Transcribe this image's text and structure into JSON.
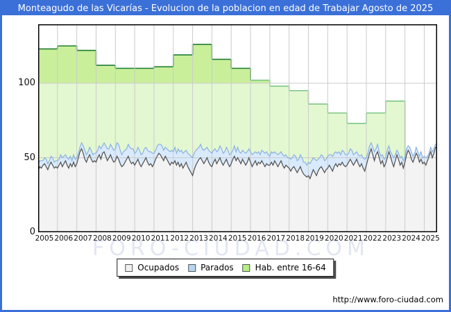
{
  "title": "Monteagudo de las Vicarías - Evolucion de la poblacion en edad de Trabajar Agosto de 2025",
  "watermark": "FORO-CIUDAD.COM",
  "footer": {
    "url": "http://www.foro-ciudad.com"
  },
  "colors": {
    "frame_blue": "#3b70d8",
    "title_text": "#ffffff",
    "hab_fill_below_100": "#e3f8d1",
    "hab_fill_above_100": "#c9ef9b",
    "hab_line_dark": "#1e7c30",
    "hab_line_light": "#7cc685",
    "parados_fill": "#d9eafc",
    "parados_line": "#8ab1e0",
    "ocupados_fill": "#f3f3f3",
    "ocupados_line": "#4d4d4d",
    "grid": "#cbcbcb",
    "plot_border": "#000000",
    "watermark_color": "#e2e6f2"
  },
  "legend": {
    "items": [
      {
        "label": "Ocupados",
        "swatch": "#f0f0f0"
      },
      {
        "label": "Parados",
        "swatch": "#b8d4f0"
      },
      {
        "label": "Hab. entre 16-64",
        "swatch": "#b6ee86"
      }
    ]
  },
  "y_axis": {
    "ticks": [
      {
        "label": "0",
        "value": 0
      },
      {
        "label": "50",
        "value": 50
      },
      {
        "label": "100",
        "value": 100
      }
    ]
  },
  "x_axis": {
    "ticks": [
      {
        "label": "2005",
        "year": 2005
      },
      {
        "label": "2006",
        "year": 2006
      },
      {
        "label": "2007",
        "year": 2007
      },
      {
        "label": "2008",
        "year": 2008
      },
      {
        "label": "2009",
        "year": 2009
      },
      {
        "label": "2010",
        "year": 2010
      },
      {
        "label": "2011",
        "year": 2011
      },
      {
        "label": "2012",
        "year": 2012
      },
      {
        "label": "2013",
        "year": 2013
      },
      {
        "label": "2014",
        "year": 2014
      },
      {
        "label": "2015",
        "year": 2015
      },
      {
        "label": "2016",
        "year": 2016
      },
      {
        "label": "2017",
        "year": 2017
      },
      {
        "label": "2018",
        "year": 2018
      },
      {
        "label": "2019",
        "year": 2019
      },
      {
        "label": "2020",
        "year": 2020
      },
      {
        "label": "2021",
        "year": 2021
      },
      {
        "label": "2022",
        "year": 2022
      },
      {
        "label": "2023",
        "year": 2023
      },
      {
        "label": "2024",
        "year": 2024
      },
      {
        "label": "2025",
        "year": 2025
      }
    ]
  },
  "chart_data": {
    "type": "area",
    "title": "Evolucion de la poblacion en edad de Trabajar - Agosto de 2025",
    "xlabel": "",
    "ylabel": "",
    "x_start": 2005,
    "x_end_fraction": 2025.6667,
    "ylim": [
      0,
      139.5
    ],
    "grid": true,
    "legend_position": "bottom",
    "series": [
      {
        "name": "Hab. entre 16-64",
        "type": "yearly-step",
        "start_year": 2005,
        "note": "padron yearly values 2005-2023, area ends at 2024.0",
        "values": [
          123,
          125,
          122,
          112,
          110,
          110,
          111,
          119,
          126,
          116,
          110,
          102,
          98,
          95,
          86,
          80,
          73,
          80,
          88
        ]
      },
      {
        "name": "Ocupados",
        "type": "monthly",
        "start": "2005-01",
        "end": "2025-08",
        "values": [
          41,
          44,
          43,
          45,
          46,
          44,
          42,
          45,
          47,
          45,
          43,
          44,
          43,
          45,
          47,
          44,
          46,
          48,
          45,
          43,
          46,
          44,
          47,
          44,
          46,
          50,
          54,
          56,
          53,
          49,
          47,
          50,
          52,
          49,
          47,
          48,
          47,
          50,
          52,
          49,
          53,
          54,
          51,
          48,
          50,
          52,
          49,
          47,
          48,
          51,
          49,
          46,
          44,
          45,
          47,
          49,
          51,
          48,
          46,
          47,
          45,
          47,
          49,
          46,
          44,
          46,
          48,
          50,
          47,
          45,
          46,
          44,
          46,
          49,
          51,
          53,
          52,
          50,
          48,
          51,
          49,
          47,
          45,
          47,
          46,
          48,
          45,
          47,
          44,
          46,
          43,
          45,
          47,
          44,
          42,
          40,
          38,
          42,
          45,
          47,
          49,
          50,
          48,
          46,
          48,
          50,
          47,
          45,
          44,
          47,
          49,
          46,
          48,
          50,
          47,
          45,
          47,
          49,
          46,
          44,
          46,
          49,
          51,
          48,
          50,
          48,
          46,
          49,
          47,
          45,
          47,
          50,
          47,
          44,
          46,
          48,
          45,
          47,
          46,
          48,
          46,
          44,
          46,
          45,
          45,
          47,
          45,
          48,
          46,
          44,
          46,
          48,
          45,
          43,
          45,
          44,
          43,
          41,
          43,
          44,
          42,
          40,
          42,
          44,
          41,
          39,
          38,
          37,
          38,
          36,
          39,
          42,
          40,
          38,
          41,
          43,
          44,
          42,
          40,
          42,
          43,
          45,
          43,
          41,
          44,
          46,
          44,
          46,
          45,
          47,
          45,
          44,
          45,
          47,
          49,
          47,
          45,
          47,
          49,
          46,
          44,
          46,
          43,
          41,
          45,
          49,
          53,
          56,
          52,
          48,
          52,
          54,
          50,
          46,
          48,
          44,
          46,
          50,
          54,
          51,
          47,
          44,
          48,
          52,
          49,
          45,
          47,
          43,
          47,
          52,
          55,
          53,
          49,
          47,
          50,
          53,
          51,
          47,
          49,
          46,
          47,
          45,
          48,
          51,
          54,
          50,
          53,
          57
        ]
      },
      {
        "name": "Parados",
        "type": "monthly-stacked-on-ocupados",
        "start": "2005-01",
        "end": "2025-08",
        "values": [
          4,
          4,
          5,
          3,
          4,
          5,
          4,
          3,
          4,
          5,
          4,
          4,
          5,
          4,
          5,
          6,
          5,
          4,
          5,
          6,
          5,
          4,
          5,
          5,
          4,
          3,
          3,
          4,
          5,
          6,
          5,
          4,
          5,
          6,
          5,
          5,
          6,
          5,
          6,
          7,
          5,
          6,
          7,
          8,
          6,
          7,
          8,
          8,
          8,
          9,
          10,
          9,
          8,
          9,
          8,
          7,
          8,
          9,
          10,
          9,
          8,
          7,
          8,
          9,
          8,
          7,
          8,
          7,
          8,
          9,
          8,
          9,
          7,
          6,
          7,
          6,
          7,
          8,
          7,
          6,
          7,
          8,
          9,
          8,
          8,
          9,
          8,
          9,
          10,
          9,
          10,
          9,
          8,
          9,
          10,
          11,
          12,
          11,
          10,
          9,
          8,
          9,
          8,
          9,
          8,
          7,
          8,
          9,
          9,
          8,
          7,
          8,
          7,
          8,
          9,
          8,
          7,
          8,
          9,
          8,
          7,
          6,
          7,
          6,
          7,
          6,
          7,
          6,
          7,
          8,
          7,
          6,
          7,
          8,
          7,
          6,
          8,
          7,
          6,
          7,
          8,
          9,
          8,
          7,
          6,
          7,
          8,
          6,
          7,
          8,
          7,
          6,
          7,
          8,
          7,
          6,
          7,
          8,
          7,
          8,
          9,
          8,
          7,
          8,
          9,
          8,
          9,
          8,
          9,
          10,
          9,
          8,
          9,
          10,
          8,
          7,
          8,
          9,
          8,
          7,
          8,
          7,
          9,
          10,
          9,
          8,
          9,
          8,
          7,
          8,
          9,
          8,
          7,
          6,
          7,
          8,
          7,
          6,
          5,
          6,
          7,
          6,
          7,
          8,
          5,
          4,
          5,
          4,
          5,
          6,
          4,
          5,
          4,
          5,
          4,
          5,
          4,
          5,
          4,
          3,
          5,
          6,
          4,
          3,
          4,
          5,
          4,
          5,
          3,
          4,
          3,
          4,
          5,
          4,
          3,
          4,
          3,
          4,
          5,
          4,
          4,
          5,
          3,
          2,
          3,
          4,
          3,
          2
        ]
      }
    ]
  }
}
